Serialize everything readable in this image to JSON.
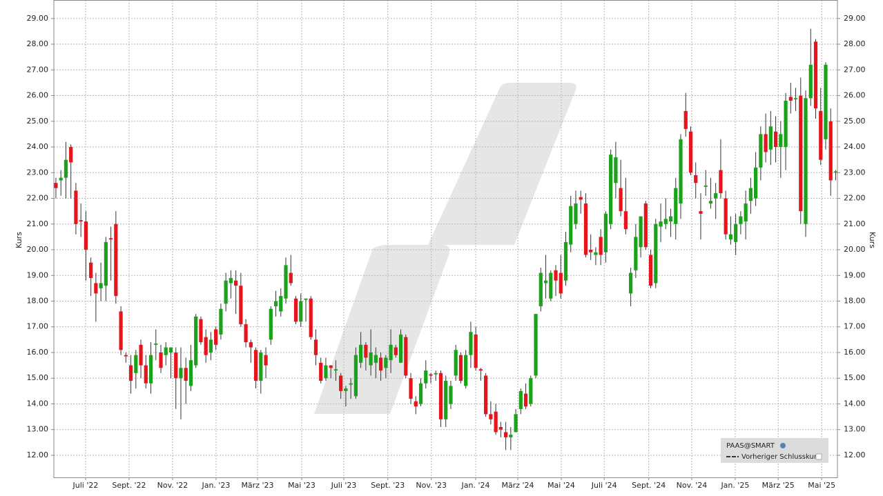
{
  "chart_data": {
    "type": "candlestick",
    "y_label": "Kurs",
    "legend": {
      "title": "PAAS@SMART",
      "entry": "Vorheriger Schlusskurs",
      "position": "lower right"
    },
    "up_color": "#1aa31a",
    "down_color": "#e8141c",
    "grid": true,
    "xlim": [
      -0.41,
      156.35
    ],
    "ylim": [
      11.14,
      29.72
    ],
    "yticks": [
      {
        "value": 12,
        "label": "12.00"
      },
      {
        "value": 13,
        "label": "13.00"
      },
      {
        "value": 14,
        "label": "14.00"
      },
      {
        "value": 15,
        "label": "15.00"
      },
      {
        "value": 16,
        "label": "16.00"
      },
      {
        "value": 17,
        "label": "17.00"
      },
      {
        "value": 18,
        "label": "18.00"
      },
      {
        "value": 19,
        "label": "19.00"
      },
      {
        "value": 20,
        "label": "20.00"
      },
      {
        "value": 21,
        "label": "21.00"
      },
      {
        "value": 22,
        "label": "22.00"
      },
      {
        "value": 23,
        "label": "23.00"
      },
      {
        "value": 24,
        "label": "24.00"
      },
      {
        "value": 25,
        "label": "25.00"
      },
      {
        "value": 26,
        "label": "26.00"
      },
      {
        "value": 27,
        "label": "27.00"
      },
      {
        "value": 28,
        "label": "28.00"
      },
      {
        "value": 29,
        "label": "29.00"
      }
    ],
    "xticks": [
      {
        "value": 5.94,
        "label": "Juli '22"
      },
      {
        "value": 14.64,
        "label": "Sept. '22"
      },
      {
        "value": 23.34,
        "label": "Nov. '22"
      },
      {
        "value": 32.04,
        "label": "Jan. '23"
      },
      {
        "value": 40.33,
        "label": "März '23"
      },
      {
        "value": 49.17,
        "label": "Mai '23"
      },
      {
        "value": 57.6,
        "label": "Juli '23"
      },
      {
        "value": 66.4,
        "label": "Sept. '23"
      },
      {
        "value": 75.1,
        "label": "Nov. '23"
      },
      {
        "value": 83.98,
        "label": "Jan. '24"
      },
      {
        "value": 92.4,
        "label": "März '24"
      },
      {
        "value": 101.1,
        "label": "Mai '24"
      },
      {
        "value": 109.7,
        "label": "Juli '24"
      },
      {
        "value": 118.6,
        "label": "Sept. '24"
      },
      {
        "value": 127.2,
        "label": "Nov. '24"
      },
      {
        "value": 135.9,
        "label": "Jan. '25"
      },
      {
        "value": 144.5,
        "label": "März '25"
      },
      {
        "value": 153.2,
        "label": "Mai '25"
      }
    ],
    "x": [
      0,
      1,
      2,
      3,
      4,
      5,
      6,
      7,
      8,
      9,
      10,
      11,
      12,
      13,
      14,
      15,
      16,
      17,
      18,
      19,
      20,
      21,
      22,
      23,
      24,
      25,
      26,
      27,
      28,
      29,
      30,
      31,
      32,
      33,
      34,
      35,
      36,
      37,
      38,
      39,
      40,
      41,
      42,
      43,
      44,
      45,
      46,
      47,
      48,
      49,
      50,
      51,
      52,
      53,
      54,
      55,
      56,
      57,
      58,
      59,
      60,
      61,
      62,
      63,
      64,
      65,
      66,
      67,
      68,
      69,
      70,
      71,
      72,
      73,
      74,
      75,
      76,
      77,
      78,
      79,
      80,
      81,
      82,
      83,
      84,
      85,
      86,
      87,
      88,
      89,
      90,
      91,
      92,
      93,
      94,
      95,
      96,
      97,
      98,
      99,
      100,
      101,
      102,
      103,
      104,
      105,
      106,
      107,
      108,
      109,
      110,
      111,
      112,
      113,
      114,
      115,
      116,
      117,
      118,
      119,
      120,
      121,
      122,
      123,
      124,
      125,
      126,
      127,
      128,
      129,
      130,
      131,
      132,
      133,
      134,
      135,
      136,
      137,
      138,
      139,
      140,
      141,
      142,
      143,
      144,
      145,
      146,
      147,
      148,
      149,
      150,
      151,
      152,
      153,
      154,
      155,
      156
    ],
    "open": [
      22.6,
      22.7,
      22.8,
      24.0,
      22.3,
      21.15,
      21.1,
      19.5,
      18.7,
      18.5,
      18.6,
      20.45,
      21.0,
      17.6,
      15.9,
      15.5,
      15.2,
      16.3,
      15.5,
      14.8,
      16.3,
      16.0,
      15.9,
      16.0,
      16.0,
      15.0,
      15.4,
      14.7,
      15.5,
      17.3,
      16.6,
      16.0,
      16.9,
      16.7,
      17.9,
      18.7,
      18.8,
      18.6,
      17.1,
      16.4,
      16.1,
      14.9,
      15.9,
      16.5,
      17.8,
      17.6,
      18.1,
      19.1,
      18.1,
      17.2,
      18.05,
      18.1,
      16.5,
      15.6,
      15.0,
      15.5,
      15.3,
      15.1,
      14.5,
      14.75,
      14.3,
      15.6,
      16.3,
      15.5,
      15.6,
      15.8,
      15.4,
      15.7,
      16.2,
      15.6,
      16.6,
      15.0,
      14.1,
      14.0,
      14.8,
      15.15,
      15.15,
      15.2,
      13.4,
      14.0,
      15.1,
      15.9,
      14.7,
      15.9,
      16.7,
      15.35,
      15.1,
      13.6,
      13.7,
      13.1,
      12.9,
      12.7,
      12.9,
      13.8,
      14.4,
      14.0,
      15.1,
      17.8,
      18.7,
      18.1,
      19.2,
      19.1,
      18.8,
      20.2,
      21.0,
      22.05,
      21.8,
      20.0,
      19.8,
      20.5,
      19.9,
      21.0,
      22.6,
      22.4,
      21.5,
      18.3,
      19.2,
      20.1,
      21.8,
      19.8,
      18.7,
      20.9,
      21.0,
      21.1,
      21.0,
      21.8,
      25.4,
      24.6,
      22.9,
      21.5,
      22.45,
      21.8,
      22.0,
      23.1,
      22.0,
      20.4,
      20.3,
      21.0,
      21.1,
      21.9,
      22.0,
      23.2,
      24.5,
      23.9,
      24.6,
      24.0,
      24.0,
      25.95,
      25.85,
      26.0,
      21.0,
      25.9,
      28.1,
      25.4,
      24.3,
      25.0,
      23.0
    ],
    "high": [
      22.8,
      23.1,
      24.2,
      24.1,
      22.6,
      21.8,
      21.5,
      19.7,
      19.1,
      19.5,
      20.5,
      20.9,
      21.5,
      17.8,
      16.0,
      15.9,
      16.1,
      16.5,
      15.9,
      16.4,
      16.9,
      16.3,
      16.4,
      16.2,
      16.2,
      16.2,
      15.8,
      16.3,
      17.5,
      17.4,
      16.9,
      16.8,
      17.0,
      17.9,
      19.1,
      19.2,
      19.2,
      19.1,
      17.3,
      16.5,
      16.2,
      16.1,
      16.2,
      17.8,
      18.4,
      18.5,
      19.7,
      19.8,
      18.2,
      18.3,
      18.1,
      18.2,
      16.9,
      15.8,
      15.8,
      15.5,
      15.7,
      15.2,
      14.7,
      15.0,
      16.2,
      16.8,
      16.4,
      16.9,
      16.2,
      16.0,
      15.9,
      16.9,
      16.3,
      16.9,
      16.7,
      15.2,
      14.3,
      15.0,
      15.7,
      15.2,
      15.3,
      15.3,
      15.1,
      14.9,
      16.3,
      16.0,
      16.1,
      17.2,
      17.0,
      15.4,
      15.2,
      14.1,
      14.0,
      13.3,
      13.3,
      13.1,
      13.8,
      14.6,
      14.8,
      15.1,
      17.5,
      19.3,
      19.8,
      19.2,
      19.4,
      19.8,
      20.7,
      22.1,
      22.3,
      22.3,
      22.2,
      20.6,
      20.1,
      20.8,
      21.5,
      23.9,
      24.2,
      23.5,
      22.8,
      19.3,
      21.0,
      21.3,
      21.9,
      20.0,
      21.2,
      21.8,
      22.0,
      21.6,
      22.8,
      24.5,
      26.1,
      24.8,
      23.4,
      22.2,
      23.1,
      22.8,
      22.6,
      24.3,
      22.3,
      21.3,
      21.4,
      21.5,
      22.3,
      22.8,
      23.8,
      24.8,
      25.3,
      25.4,
      25.2,
      25.0,
      26.1,
      26.5,
      26.3,
      26.7,
      26.2,
      28.6,
      28.2,
      26.3,
      27.3,
      25.5,
      23.1
    ],
    "low": [
      22.0,
      22.1,
      22.0,
      22.0,
      20.6,
      20.5,
      18.8,
      18.2,
      17.2,
      18.0,
      18.0,
      18.8,
      17.9,
      15.9,
      15.6,
      14.4,
      14.6,
      15.0,
      14.6,
      14.4,
      15.7,
      15.2,
      15.5,
      15.0,
      13.8,
      13.4,
      14.0,
      14.5,
      15.4,
      16.3,
      15.6,
      15.7,
      16.1,
      16.5,
      17.6,
      18.1,
      17.5,
      17.0,
      16.2,
      15.6,
      14.6,
      14.4,
      15.0,
      16.3,
      17.4,
      17.4,
      17.9,
      18.6,
      17.1,
      17.0,
      17.2,
      16.5,
      15.5,
      14.8,
      14.9,
      15.0,
      14.9,
      14.2,
      13.9,
      14.2,
      14.2,
      15.4,
      15.3,
      15.1,
      15.0,
      14.9,
      15.0,
      15.2,
      15.8,
      15.6,
      15.0,
      14.0,
      13.6,
      13.9,
      14.6,
      14.8,
      14.9,
      13.1,
      13.1,
      13.8,
      14.9,
      14.8,
      14.6,
      15.4,
      15.3,
      14.9,
      13.5,
      13.2,
      12.8,
      12.7,
      12.2,
      12.2,
      12.9,
      13.6,
      13.8,
      13.9,
      15.0,
      17.6,
      18.1,
      18.0,
      18.2,
      18.1,
      18.6,
      19.9,
      20.8,
      21.4,
      19.7,
      19.6,
      19.4,
      19.4,
      19.5,
      20.8,
      22.0,
      21.3,
      20.6,
      17.8,
      18.9,
      19.7,
      20.0,
      18.5,
      18.5,
      20.3,
      20.8,
      20.5,
      20.4,
      21.2,
      24.4,
      22.9,
      22.0,
      20.4,
      22.1,
      21.6,
      21.2,
      22.0,
      20.4,
      20.2,
      19.8,
      20.6,
      20.4,
      21.4,
      21.7,
      22.7,
      23.4,
      23.3,
      23.4,
      22.8,
      23.1,
      25.3,
      25.4,
      21.0,
      20.5,
      25.6,
      25.1,
      23.3,
      23.9,
      22.1,
      22.7
    ],
    "close": [
      22.4,
      22.8,
      23.5,
      23.4,
      21.0,
      21.1,
      20.0,
      18.9,
      18.3,
      18.7,
      20.3,
      20.4,
      18.2,
      16.1,
      15.85,
      14.9,
      15.9,
      15.5,
      14.8,
      15.9,
      16.35,
      15.4,
      16.2,
      16.2,
      15.0,
      15.4,
      14.9,
      15.7,
      17.4,
      16.4,
      15.9,
      16.5,
      16.3,
      17.7,
      18.8,
      18.9,
      18.6,
      17.1,
      16.4,
      16.2,
      14.9,
      16.0,
      15.5,
      17.7,
      18.0,
      18.2,
      19.4,
      18.7,
      17.2,
      18.0,
      18.1,
      16.6,
      15.9,
      14.9,
      15.5,
      15.4,
      15.35,
      14.5,
      14.6,
      14.8,
      15.9,
      16.3,
      15.8,
      16.0,
      15.9,
      15.3,
      15.8,
      16.3,
      15.9,
      16.7,
      15.1,
      14.2,
      13.9,
      14.8,
      15.3,
      15.1,
      15.2,
      13.4,
      14.9,
      14.7,
      16.1,
      14.9,
      15.9,
      16.8,
      15.4,
      15.3,
      13.6,
      13.4,
      12.9,
      13.0,
      12.7,
      12.8,
      13.6,
      14.5,
      13.9,
      15.0,
      17.5,
      19.1,
      18.8,
      19.1,
      18.8,
      18.3,
      20.3,
      21.7,
      21.8,
      21.95,
      19.8,
      19.9,
      19.9,
      19.8,
      21.4,
      23.7,
      23.6,
      21.5,
      20.8,
      19.1,
      20.5,
      21.3,
      20.1,
      18.6,
      21.0,
      21.1,
      21.2,
      21.3,
      22.4,
      24.3,
      24.7,
      23.0,
      22.6,
      21.4,
      22.5,
      21.9,
      22.2,
      22.2,
      20.6,
      20.6,
      21.0,
      21.3,
      21.8,
      22.4,
      23.2,
      24.5,
      23.8,
      24.8,
      24.0,
      24.5,
      25.8,
      25.8,
      25.9,
      21.5,
      25.9,
      27.2,
      25.5,
      23.5,
      27.2,
      22.7,
      23.05
    ]
  }
}
